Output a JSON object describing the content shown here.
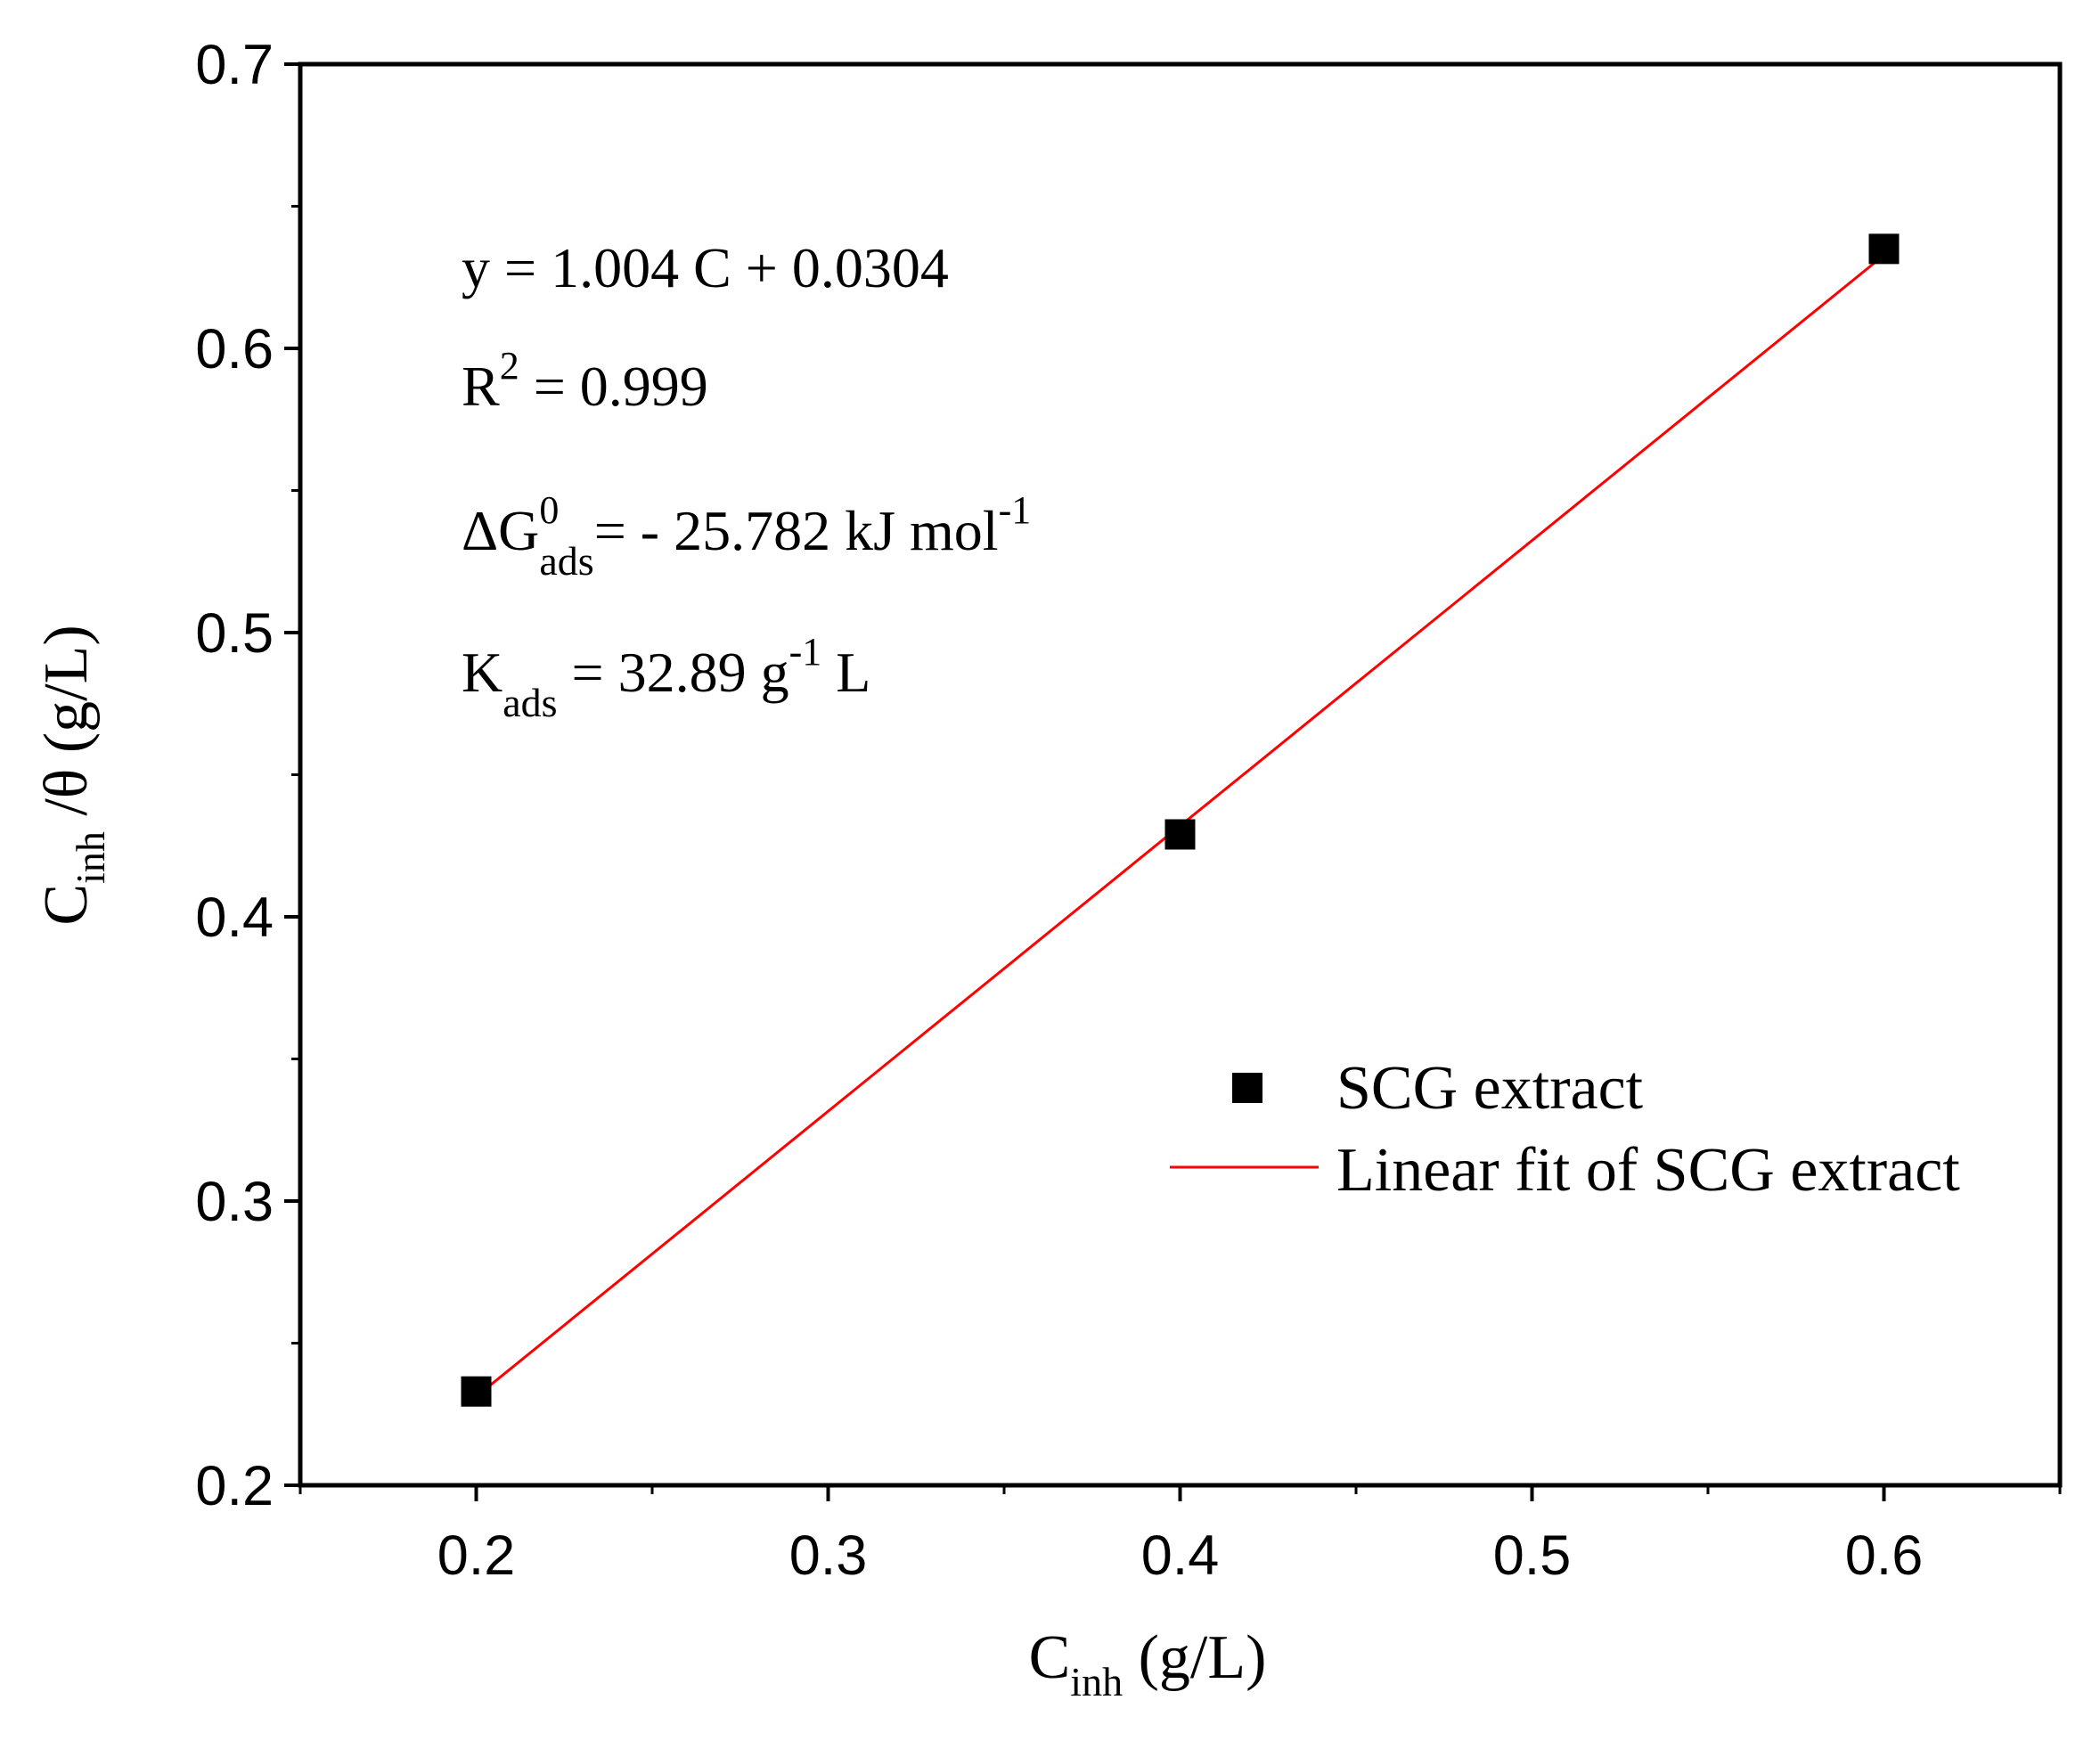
{
  "chart_data": {
    "type": "scatter",
    "title": "",
    "xlabel": {
      "main": "C",
      "sub": "inh",
      "rest": " (g/L)"
    },
    "ylabel": {
      "main": "C",
      "sub": "inh",
      "rest": " /θ (g/L)"
    },
    "xlim": [
      0.15,
      0.65
    ],
    "ylim": [
      0.2,
      0.7
    ],
    "xticks": [
      0.2,
      0.3,
      0.4,
      0.5,
      0.6
    ],
    "xtick_labels": [
      "0.2",
      "0.3",
      "0.4",
      "0.5",
      "0.6"
    ],
    "yticks": [
      0.2,
      0.3,
      0.4,
      0.5,
      0.6,
      0.7
    ],
    "ytick_labels": [
      "0.2",
      "0.3",
      "0.4",
      "0.5",
      "0.6",
      "0.7"
    ],
    "grid": false,
    "series": [
      {
        "name": "SCG extract",
        "kind": "scatter",
        "marker": "square",
        "color": "#000000",
        "x": [
          0.2,
          0.4,
          0.6
        ],
        "y": [
          0.233,
          0.429,
          0.635
        ]
      },
      {
        "name": "Linear fit of SCG extract",
        "kind": "line",
        "color": "#ff0000",
        "slope": 1.004,
        "intercept": 0.0304,
        "x_range": [
          0.2,
          0.6
        ]
      }
    ],
    "legend_position": "bottom-right",
    "annotations": {
      "equation": "y = 1.004 C + 0.0304",
      "r2": {
        "main": "R",
        "sup": "2",
        "rest": " = 0.999"
      },
      "dg": {
        "main": "ΔG",
        "sup": "0",
        "sub": "ads",
        "rest": "= - 25.782 kJ mol",
        "sup2": "-1"
      },
      "k": {
        "main": "K",
        "sub": "ads",
        "rest": " = 32.89 g",
        "sup": "-1",
        "rest2": " L"
      }
    }
  }
}
